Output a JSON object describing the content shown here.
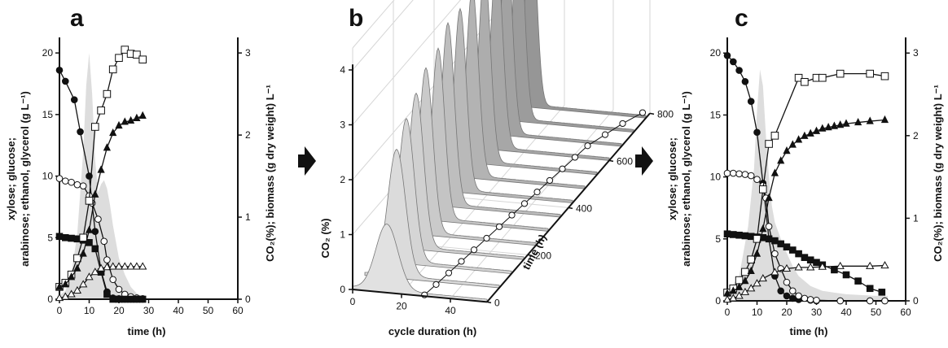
{
  "arrow_color": "#111111",
  "co2_fill_color": "#dddddd",
  "chart_data": [
    {
      "type": "line",
      "panel_label": "a",
      "xlabel": "time (h)",
      "ylabel_left_1": "xylose; glucose;",
      "ylabel_left_2": "arabinose; ethanol, glycerol (g L⁻¹)",
      "ylabel_right": "CO₂(%); biomass (g dry weight) L⁻¹",
      "xlim": [
        0,
        60
      ],
      "ylim_left": [
        0,
        21
      ],
      "ylim_right": [
        0,
        3.15
      ],
      "xticks": [
        "0",
        "10",
        "20",
        "30",
        "40",
        "50",
        "60"
      ],
      "yticks_left": [
        "0",
        "5",
        "10",
        "15",
        "20"
      ],
      "yticks_right": [
        "0",
        "1",
        "2",
        "3"
      ],
      "co2": {
        "x": [
          0,
          2,
          4,
          6,
          8,
          9,
          10,
          11,
          12,
          13,
          14,
          15,
          16,
          17,
          18,
          19,
          20,
          22,
          24,
          26,
          28,
          30
        ],
        "y": [
          0.05,
          0.1,
          0.3,
          0.8,
          1.8,
          2.6,
          3.0,
          2.5,
          1.7,
          1.3,
          1.4,
          1.45,
          1.35,
          1.15,
          0.9,
          0.7,
          0.5,
          0.3,
          0.15,
          0.07,
          0.03,
          0
        ]
      },
      "series": [
        {
          "marker": "filled-circle",
          "axis": "left",
          "x": [
            0,
            2,
            5,
            7,
            10,
            12,
            14,
            16,
            18,
            20,
            22,
            24,
            26,
            28
          ],
          "y": [
            18.6,
            17.7,
            16.2,
            13.6,
            10,
            5.5,
            2.3,
            0.6,
            0.1,
            0.05,
            0,
            0,
            0,
            0
          ]
        },
        {
          "marker": "open-circle",
          "axis": "left",
          "x": [
            0,
            2,
            4,
            6,
            8,
            10,
            11,
            13,
            15,
            16,
            18,
            20,
            22,
            24,
            26,
            28
          ],
          "y": [
            9.8,
            9.6,
            9.5,
            9.3,
            9.2,
            8.4,
            7.8,
            6.5,
            4.7,
            3.2,
            1.6,
            0.8,
            0.4,
            0.2,
            0.1,
            0.05
          ]
        },
        {
          "marker": "filled-square",
          "axis": "left",
          "x": [
            0,
            2,
            4,
            6,
            8,
            10,
            12,
            14,
            16,
            18,
            20,
            22,
            24,
            26,
            28
          ],
          "y": [
            5.1,
            5.0,
            4.95,
            4.9,
            4.8,
            4.6,
            4.1,
            2.2,
            0.4,
            0,
            0,
            0,
            0,
            0,
            0
          ]
        },
        {
          "marker": "open-square",
          "axis": "right",
          "x": [
            0,
            2,
            4,
            6,
            8,
            10,
            12,
            14,
            16,
            18,
            20,
            22,
            24,
            26,
            28
          ],
          "y": [
            0.15,
            0.2,
            0.3,
            0.5,
            0.75,
            1.2,
            2.1,
            2.3,
            2.5,
            2.8,
            2.94,
            3.04,
            2.99,
            2.98,
            2.92
          ]
        },
        {
          "marker": "filled-triangle",
          "axis": "left",
          "x": [
            0,
            2,
            4,
            6,
            8,
            10,
            12,
            14,
            16,
            18,
            20,
            22,
            24,
            26,
            28
          ],
          "y": [
            1.0,
            1.2,
            1.8,
            2.5,
            3.7,
            5.6,
            8.5,
            10.5,
            12.3,
            13.5,
            14.1,
            14.4,
            14.5,
            14.7,
            14.9
          ]
        },
        {
          "marker": "open-triangle",
          "axis": "left",
          "x": [
            0,
            2,
            4,
            6,
            8,
            10,
            12,
            14,
            16,
            18,
            20,
            22,
            24,
            26,
            28
          ],
          "y": [
            0.1,
            0.2,
            0.4,
            0.7,
            1.2,
            1.8,
            2.2,
            2.5,
            2.6,
            2.65,
            2.65,
            2.65,
            2.65,
            2.65,
            2.65
          ]
        }
      ]
    },
    {
      "type": "area",
      "panel_label": "b",
      "xlabel": "cycle duration (h)",
      "ylabel": "CO₂ (%)",
      "zlabel": "time (h)",
      "xticks": [
        "0",
        "20",
        "40"
      ],
      "yticks": [
        "0",
        "1",
        "2",
        "3",
        "4"
      ],
      "zticks": [
        "0",
        "200",
        "400",
        "600",
        "800"
      ],
      "cycles": [
        {
          "start": 0,
          "peak_time": 14,
          "peak": 1.2,
          "width": 4.5
        },
        {
          "start": 60,
          "peak_time": 13,
          "peak": 2.3,
          "width": 3.6
        },
        {
          "start": 120,
          "peak_time": 12,
          "peak": 2.6,
          "width": 3.2
        },
        {
          "start": 180,
          "peak_time": 11,
          "peak": 2.8,
          "width": 3.0
        },
        {
          "start": 240,
          "peak_time": 10,
          "peak": 3.0,
          "width": 2.8
        },
        {
          "start": 300,
          "peak_time": 10,
          "peak": 3.1,
          "width": 2.6
        },
        {
          "start": 360,
          "peak_time": 9,
          "peak": 3.3,
          "width": 2.6
        },
        {
          "start": 420,
          "peak_time": 9,
          "peak": 3.3,
          "width": 2.5
        },
        {
          "start": 480,
          "peak_time": 9,
          "peak": 3.4,
          "width": 2.5
        },
        {
          "start": 540,
          "peak_time": 9,
          "peak": 3.5,
          "width": 2.4
        },
        {
          "start": 600,
          "peak_time": 9,
          "peak": 3.5,
          "width": 2.4
        },
        {
          "start": 660,
          "peak_time": 8,
          "peak": 3.6,
          "width": 2.3
        },
        {
          "start": 720,
          "peak_time": 8,
          "peak": 3.8,
          "width": 2.2
        },
        {
          "start": 780,
          "peak_time": 8,
          "peak": 3.7,
          "width": 2.2
        }
      ],
      "cycle_duration_points": {
        "time": [
          5,
          50,
          100,
          150,
          200,
          250,
          300,
          350,
          400,
          450,
          500,
          550,
          600,
          650,
          700,
          750,
          800
        ],
        "duration": [
          29,
          30,
          31,
          32,
          33,
          34,
          35,
          36,
          37,
          38,
          39,
          40,
          41,
          42,
          45,
          48,
          52
        ]
      }
    },
    {
      "type": "line",
      "panel_label": "c",
      "xlabel": "time (h)",
      "ylabel_left_1": "xylose; glucose;",
      "ylabel_left_2": "arabinose; ethanol, glycerol (g L⁻¹)",
      "ylabel_right": "CO₂(%); biomass (g dry weight) L⁻¹",
      "xlim": [
        0,
        60
      ],
      "ylim_left": [
        0,
        21
      ],
      "ylim_right": [
        0,
        3.15
      ],
      "xticks": [
        "0",
        "10",
        "20",
        "30",
        "40",
        "50",
        "60"
      ],
      "yticks_left": [
        "0",
        "5",
        "10",
        "15",
        "20"
      ],
      "yticks_right": [
        "0",
        "1",
        "2",
        "3"
      ],
      "co2": {
        "x": [
          0,
          4,
          7,
          9,
          10,
          11,
          12,
          13,
          14,
          15,
          16,
          18,
          20,
          22,
          24,
          28,
          32,
          36,
          40,
          45,
          50,
          54
        ],
        "y": [
          0.1,
          0.3,
          0.9,
          1.6,
          2.3,
          2.8,
          2.6,
          2.0,
          1.5,
          1.15,
          0.95,
          0.75,
          0.58,
          0.42,
          0.3,
          0.18,
          0.12,
          0.1,
          0.08,
          0.07,
          0.06,
          0.06
        ]
      },
      "series": [
        {
          "marker": "filled-circle",
          "axis": "left",
          "x": [
            0,
            2,
            4,
            6,
            8,
            10,
            12,
            14,
            16,
            18,
            20,
            22,
            24,
            28,
            30,
            38,
            48,
            53
          ],
          "y": [
            19.8,
            19.3,
            18.6,
            17.7,
            16.1,
            13.6,
            9.5,
            5.0,
            2.0,
            0.8,
            0.4,
            0.2,
            0.1,
            0.05,
            0,
            0,
            0,
            0
          ]
        },
        {
          "marker": "open-circle",
          "axis": "left",
          "x": [
            0,
            2,
            4,
            6,
            8,
            10,
            12,
            13,
            14,
            16,
            18,
            20,
            22,
            24,
            26,
            28,
            30,
            38,
            48,
            53
          ],
          "y": [
            10.3,
            10.3,
            10.25,
            10.2,
            10.1,
            9.8,
            9.3,
            8.3,
            6.0,
            3.8,
            2.6,
            1.5,
            0.8,
            0.4,
            0.2,
            0.1,
            0.05,
            0,
            0,
            0
          ]
        },
        {
          "marker": "filled-square",
          "axis": "left",
          "x": [
            0,
            2,
            4,
            6,
            8,
            10,
            12,
            14,
            16,
            18,
            20,
            22,
            24,
            26,
            28,
            30,
            32,
            36,
            40,
            44,
            48,
            52
          ],
          "y": [
            5.4,
            5.35,
            5.3,
            5.25,
            5.2,
            5.15,
            5.1,
            5.0,
            4.85,
            4.6,
            4.35,
            4.1,
            3.8,
            3.5,
            3.3,
            3.1,
            2.9,
            2.5,
            2.1,
            1.6,
            1.0,
            0.7
          ]
        },
        {
          "marker": "open-square",
          "axis": "right",
          "x": [
            0,
            2,
            4,
            6,
            8,
            10,
            12,
            14,
            16,
            24,
            26,
            30,
            32,
            38,
            48,
            53
          ],
          "y": [
            0.1,
            0.15,
            0.25,
            0.35,
            0.5,
            0.75,
            1.35,
            1.9,
            2.0,
            2.7,
            2.65,
            2.7,
            2.7,
            2.75,
            2.75,
            2.72
          ]
        },
        {
          "marker": "filled-triangle",
          "axis": "left",
          "x": [
            0,
            2,
            4,
            6,
            8,
            10,
            12,
            14,
            16,
            18,
            20,
            22,
            24,
            26,
            28,
            30,
            32,
            34,
            36,
            38,
            40,
            44,
            48,
            53
          ],
          "y": [
            0.6,
            0.8,
            1.1,
            1.6,
            2.4,
            3.8,
            5.8,
            8.3,
            10.3,
            11.3,
            12.1,
            12.6,
            13.0,
            13.3,
            13.5,
            13.7,
            13.9,
            14.0,
            14.1,
            14.2,
            14.3,
            14.4,
            14.5,
            14.6
          ]
        },
        {
          "marker": "open-triangle",
          "axis": "left",
          "x": [
            0,
            2,
            4,
            6,
            8,
            10,
            12,
            16,
            20,
            24,
            28,
            32,
            38,
            48,
            53
          ],
          "y": [
            0.1,
            0.2,
            0.4,
            0.7,
            1.0,
            1.4,
            1.8,
            2.3,
            2.6,
            2.7,
            2.7,
            2.75,
            2.8,
            2.8,
            2.85
          ]
        }
      ]
    }
  ]
}
